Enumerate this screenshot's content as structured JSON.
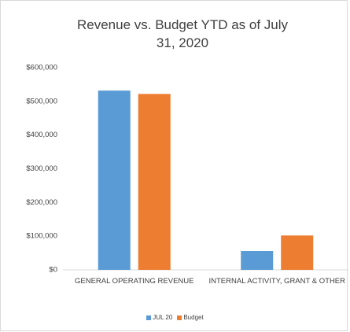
{
  "chart_data": {
    "type": "bar",
    "title": "Revenue vs. Budget YTD as of July 31, 2020",
    "categories": [
      "GENERAL OPERATING REVENUE",
      "INTERNAL ACTIVITY, GRANT & OTHER"
    ],
    "series": [
      {
        "name": "JUL 20",
        "color": "#5b9bd5",
        "values": [
          532000,
          56000
        ]
      },
      {
        "name": "Budget",
        "color": "#ed7d31",
        "values": [
          522000,
          102000
        ]
      }
    ],
    "ylim": [
      0,
      600000
    ],
    "yticks": [
      {
        "value": 0,
        "label": "$0"
      },
      {
        "value": 100000,
        "label": "$100,000"
      },
      {
        "value": 200000,
        "label": "$200,000"
      },
      {
        "value": 300000,
        "label": "$300,000"
      },
      {
        "value": 400000,
        "label": "$400,000"
      },
      {
        "value": 500000,
        "label": "$500,000"
      },
      {
        "value": 600000,
        "label": "$600,000"
      }
    ],
    "grid": false,
    "legend": "bottom"
  }
}
